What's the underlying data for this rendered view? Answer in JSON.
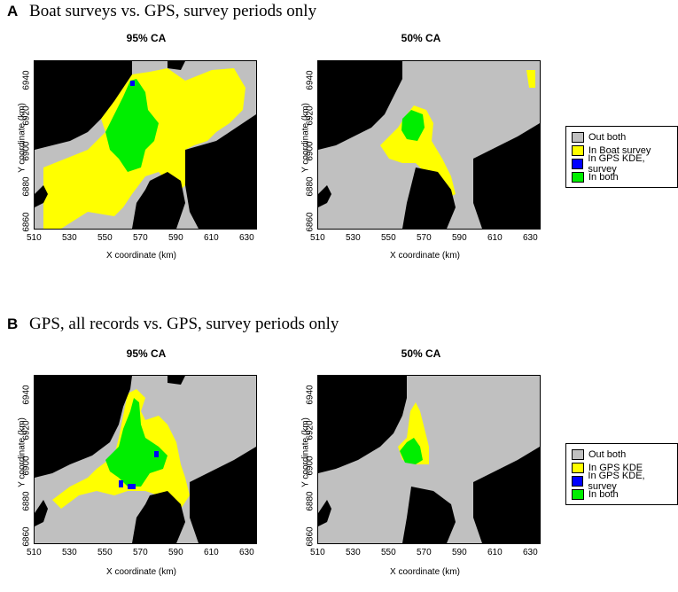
{
  "colors": {
    "out_both": "#c0c0c0",
    "in_first": "#ffff00",
    "in_gps_survey": "#0000ff",
    "in_both": "#00ee00",
    "land": "#000000"
  },
  "panelA": {
    "letter": "A",
    "title": "Boat surveys vs. GPS, survey periods only",
    "left_title": "95% CA",
    "right_title": "50% CA",
    "legend": [
      "Out both",
      "In Boat survey",
      "In GPS KDE, survey",
      "In both"
    ]
  },
  "panelB": {
    "letter": "B",
    "title": "GPS, all records vs. GPS, survey periods only",
    "left_title": "95% CA",
    "right_title": "50% CA",
    "legend": [
      "Out both",
      "In GPS KDE",
      "In GPS KDE, survey",
      "In both"
    ]
  },
  "axes": {
    "xlabel": "X coordinate (km)",
    "ylabel": "Y coordinate (km)",
    "xticks": [
      "510",
      "530",
      "550",
      "570",
      "590",
      "610",
      "630"
    ],
    "yticks": [
      "6860",
      "6880",
      "6900",
      "6920",
      "6940"
    ]
  }
}
